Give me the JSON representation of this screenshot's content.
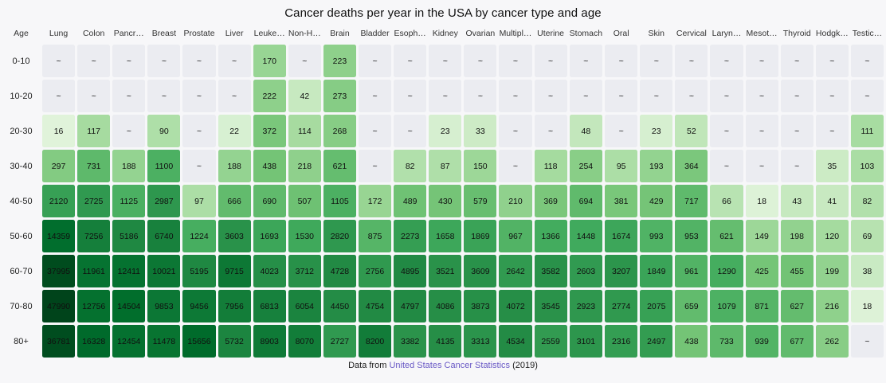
{
  "title": "Cancer deaths per year in the USA by cancer type and age",
  "footer": {
    "prefix": "Data from ",
    "link": "United States Cancer Statistics",
    "suffix": " (2019)"
  },
  "colors": {
    "background": "#f7f7f9",
    "empty_cell": "#ebecf1",
    "cell_text": "#101010",
    "header_text": "#333333",
    "link": "#6a5ac6",
    "green_scale": [
      "#f7fcf5",
      "#e5f5e0",
      "#c7e9c0",
      "#a1d99b",
      "#74c476",
      "#41ab5d",
      "#238b45",
      "#006d2c",
      "#00441b"
    ]
  },
  "chart_data": {
    "type": "heatmap",
    "title": "Cancer deaths per year in the USA by cancer type and age",
    "corner_label": "Age",
    "columns": [
      "Lung",
      "Colon",
      "Pancr…",
      "Breast",
      "Prostate",
      "Liver",
      "Leuke…",
      "Non-H…",
      "Brain",
      "Bladder",
      "Esoph…",
      "Kidney",
      "Ovarian",
      "Multipl…",
      "Uterine",
      "Stomach",
      "Oral",
      "Skin",
      "Cervical",
      "Laryn…",
      "Mesot…",
      "Thyroid",
      "Hodgk…",
      "Testic…"
    ],
    "rows": [
      "0-10",
      "10-20",
      "20-30",
      "30-40",
      "40-50",
      "50-60",
      "60-70",
      "70-80",
      "80+"
    ],
    "empty_marker": "~",
    "values": [
      [
        null,
        null,
        null,
        null,
        null,
        null,
        170,
        null,
        223,
        null,
        null,
        null,
        null,
        null,
        null,
        null,
        null,
        null,
        null,
        null,
        null,
        null,
        null,
        null
      ],
      [
        null,
        null,
        null,
        null,
        null,
        null,
        222,
        42,
        273,
        null,
        null,
        null,
        null,
        null,
        null,
        null,
        null,
        null,
        null,
        null,
        null,
        null,
        null,
        null
      ],
      [
        16,
        117,
        null,
        90,
        null,
        22,
        372,
        114,
        268,
        null,
        null,
        23,
        33,
        null,
        null,
        48,
        null,
        23,
        52,
        null,
        null,
        null,
        null,
        111
      ],
      [
        297,
        731,
        188,
        1100,
        null,
        188,
        438,
        218,
        621,
        null,
        82,
        87,
        150,
        null,
        118,
        254,
        95,
        193,
        364,
        null,
        null,
        null,
        35,
        103
      ],
      [
        2120,
        2725,
        1125,
        2987,
        97,
        666,
        690,
        507,
        1105,
        172,
        489,
        430,
        579,
        210,
        369,
        694,
        381,
        429,
        717,
        66,
        18,
        43,
        41,
        82
      ],
      [
        14359,
        7256,
        5186,
        6740,
        1224,
        3603,
        1693,
        1530,
        2820,
        875,
        2273,
        1658,
        1869,
        967,
        1366,
        1448,
        1674,
        993,
        953,
        621,
        149,
        198,
        120,
        69
      ],
      [
        37995,
        11961,
        12411,
        10021,
        5195,
        9715,
        4023,
        3712,
        4728,
        2756,
        4895,
        3521,
        3609,
        2642,
        3582,
        2603,
        3207,
        1849,
        961,
        1290,
        425,
        455,
        199,
        38
      ],
      [
        47990,
        12756,
        14504,
        9853,
        9456,
        7956,
        6813,
        6054,
        4450,
        4754,
        4797,
        4086,
        3873,
        4072,
        3545,
        2923,
        2774,
        2075,
        659,
        1079,
        871,
        627,
        216,
        18
      ],
      [
        36781,
        16328,
        12454,
        11478,
        15656,
        5732,
        8903,
        8070,
        2727,
        8200,
        3382,
        4135,
        3313,
        4534,
        2559,
        3101,
        2316,
        2497,
        438,
        733,
        939,
        677,
        262,
        null
      ]
    ],
    "color_scale": {
      "mapping": "log10",
      "domain": [
        4,
        48000
      ],
      "legend": "none",
      "grid": "off"
    },
    "source_note": "Data from United States Cancer Statistics (2019)"
  }
}
